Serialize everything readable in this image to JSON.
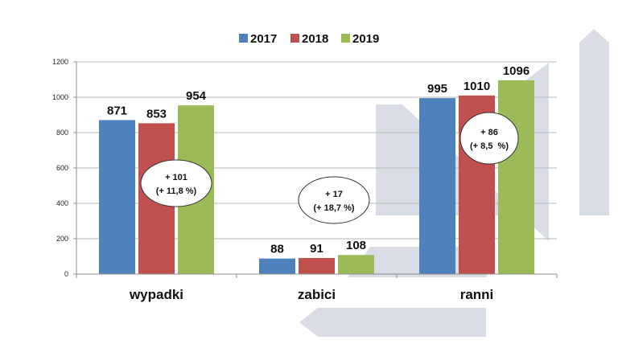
{
  "chart_data": {
    "type": "bar",
    "title": "",
    "xlabel": "",
    "ylabel": "",
    "ylim": [
      0,
      1200
    ],
    "yticks": [
      0,
      200,
      400,
      600,
      800,
      1000,
      1200
    ],
    "grid": true,
    "legend_position": "top-center",
    "categories": [
      "wypadki",
      "zabici",
      "ranni"
    ],
    "series": [
      {
        "name": "2017",
        "color": "#4f81bd",
        "values": [
          871,
          88,
          995
        ]
      },
      {
        "name": "2018",
        "color": "#c0504d",
        "values": [
          853,
          91,
          1010
        ]
      },
      {
        "name": "2019",
        "color": "#9bbb59",
        "values": [
          954,
          108,
          1096
        ]
      }
    ],
    "annotations": [
      {
        "category": "wypadki",
        "line1": "+ 101",
        "line2": "(+ 11,8 %)"
      },
      {
        "category": "zabici",
        "line1": "+ 17",
        "line2": "(+ 18,7 %)"
      },
      {
        "category": "ranni",
        "line1": "+ 86",
        "line2": "(+ 8,5  %)"
      }
    ]
  },
  "colors": {
    "background_arrows": "#d9dde5",
    "grid": "#b7b7b7",
    "axis": "#8c8c8c"
  }
}
